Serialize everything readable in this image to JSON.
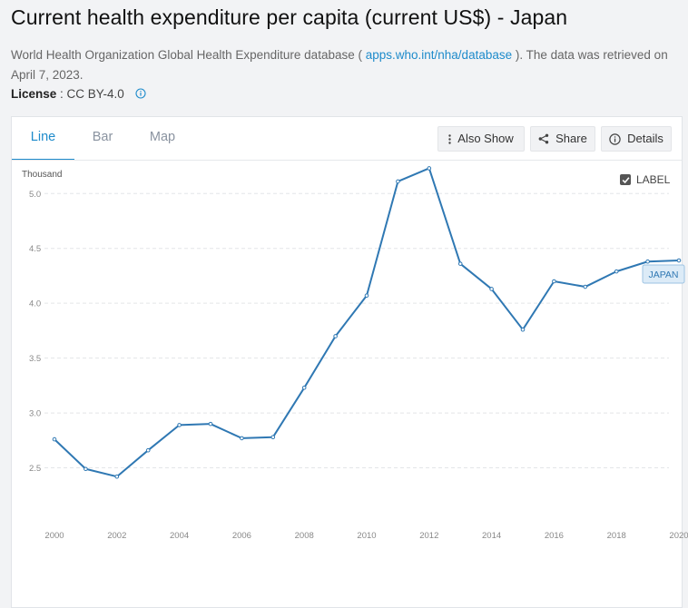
{
  "page": {
    "title": "Current health expenditure per capita (current US$) - Japan",
    "source_prefix": "World Health Organization Global Health Expenditure database ( ",
    "source_link": "apps.who.int/nha/database",
    "source_suffix": " ). The data was retrieved on April 7, 2023.",
    "license_label": "License",
    "license_value": " : CC BY-4.0"
  },
  "tabs": [
    {
      "label": "Line",
      "active": true
    },
    {
      "label": "Bar",
      "active": false
    },
    {
      "label": "Map",
      "active": false
    }
  ],
  "buttons": {
    "also_show": "Also Show",
    "share": "Share",
    "details": "Details"
  },
  "label_toggle": {
    "text": "LABEL",
    "checked": true
  },
  "icons": {
    "info": "info-icon",
    "also_show": "vertical-dots-icon",
    "share": "share-icon",
    "details": "info-circle-icon",
    "checkbox": "checkmark-icon"
  },
  "colors": {
    "line": "#2f78b3",
    "accent": "#1e8bcb",
    "series_label_bg": "#dcebf7"
  },
  "chart_data": {
    "type": "line",
    "ylabel": "Thousand",
    "ylim": [
      2.0,
      5.3
    ],
    "yticks": [
      "2.5",
      "3.0",
      "3.5",
      "4.0",
      "4.5",
      "5.0"
    ],
    "xticks": [
      "2000",
      "2002",
      "2004",
      "2006",
      "2008",
      "2010",
      "2012",
      "2014",
      "2016",
      "2018",
      "2020"
    ],
    "grid": true,
    "x": [
      2000,
      2001,
      2002,
      2003,
      2004,
      2005,
      2006,
      2007,
      2008,
      2009,
      2010,
      2011,
      2012,
      2013,
      2014,
      2015,
      2016,
      2017,
      2018,
      2019,
      2020
    ],
    "series": [
      {
        "name": "JAPAN",
        "values": [
          2.76,
          2.49,
          2.42,
          2.66,
          2.89,
          2.9,
          2.77,
          2.78,
          3.23,
          3.7,
          4.07,
          5.11,
          5.23,
          4.36,
          4.13,
          3.76,
          4.2,
          4.15,
          4.29,
          4.38,
          4.39
        ]
      }
    ]
  }
}
